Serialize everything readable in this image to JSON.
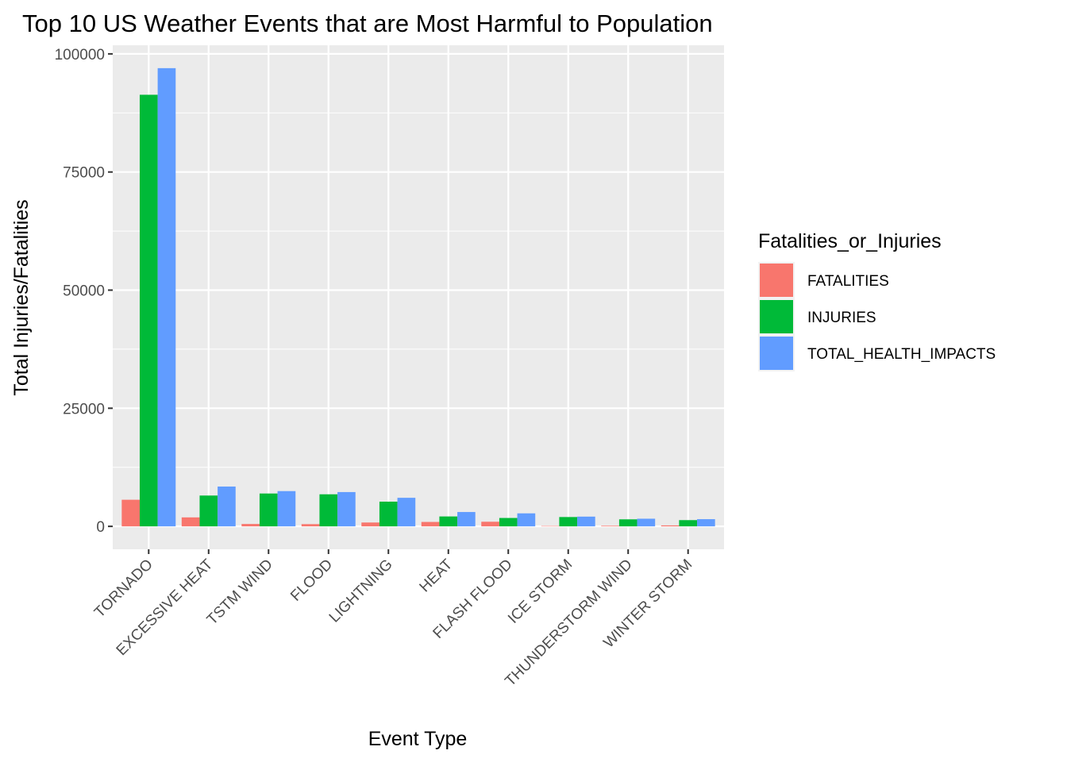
{
  "chart_data": {
    "type": "bar",
    "title": "Top 10 US Weather Events that are Most Harmful to Population",
    "xlabel": "Event Type",
    "ylabel": "Total Injuries/Fatalities",
    "categories": [
      "TORNADO",
      "EXCESSIVE HEAT",
      "TSTM WIND",
      "FLOOD",
      "LIGHTNING",
      "HEAT",
      "FLASH FLOOD",
      "ICE STORM",
      "THUNDERSTORM WIND",
      "WINTER STORM"
    ],
    "series": [
      {
        "name": "FATALITIES",
        "color": "#F8766D",
        "values": [
          5633,
          1903,
          504,
          470,
          816,
          937,
          978,
          89,
          133,
          206
        ]
      },
      {
        "name": "INJURIES",
        "color": "#00BA38",
        "values": [
          91346,
          6525,
          6957,
          6789,
          5230,
          2100,
          1777,
          1975,
          1488,
          1321
        ]
      },
      {
        "name": "TOTAL_HEALTH_IMPACTS",
        "color": "#619CFF",
        "values": [
          96979,
          8428,
          7461,
          7259,
          6046,
          3037,
          2755,
          2064,
          1621,
          1527
        ]
      }
    ],
    "ylim": [
      -4849,
      101828
    ],
    "yticks": [
      0,
      25000,
      50000,
      75000,
      100000
    ],
    "ytick_labels": [
      "0",
      "25000",
      "50000",
      "75000",
      "100000"
    ],
    "legend": {
      "title": "Fatalities_or_Injuries",
      "position": "right"
    },
    "grid": true,
    "panel_background": "#EBEBEB"
  }
}
